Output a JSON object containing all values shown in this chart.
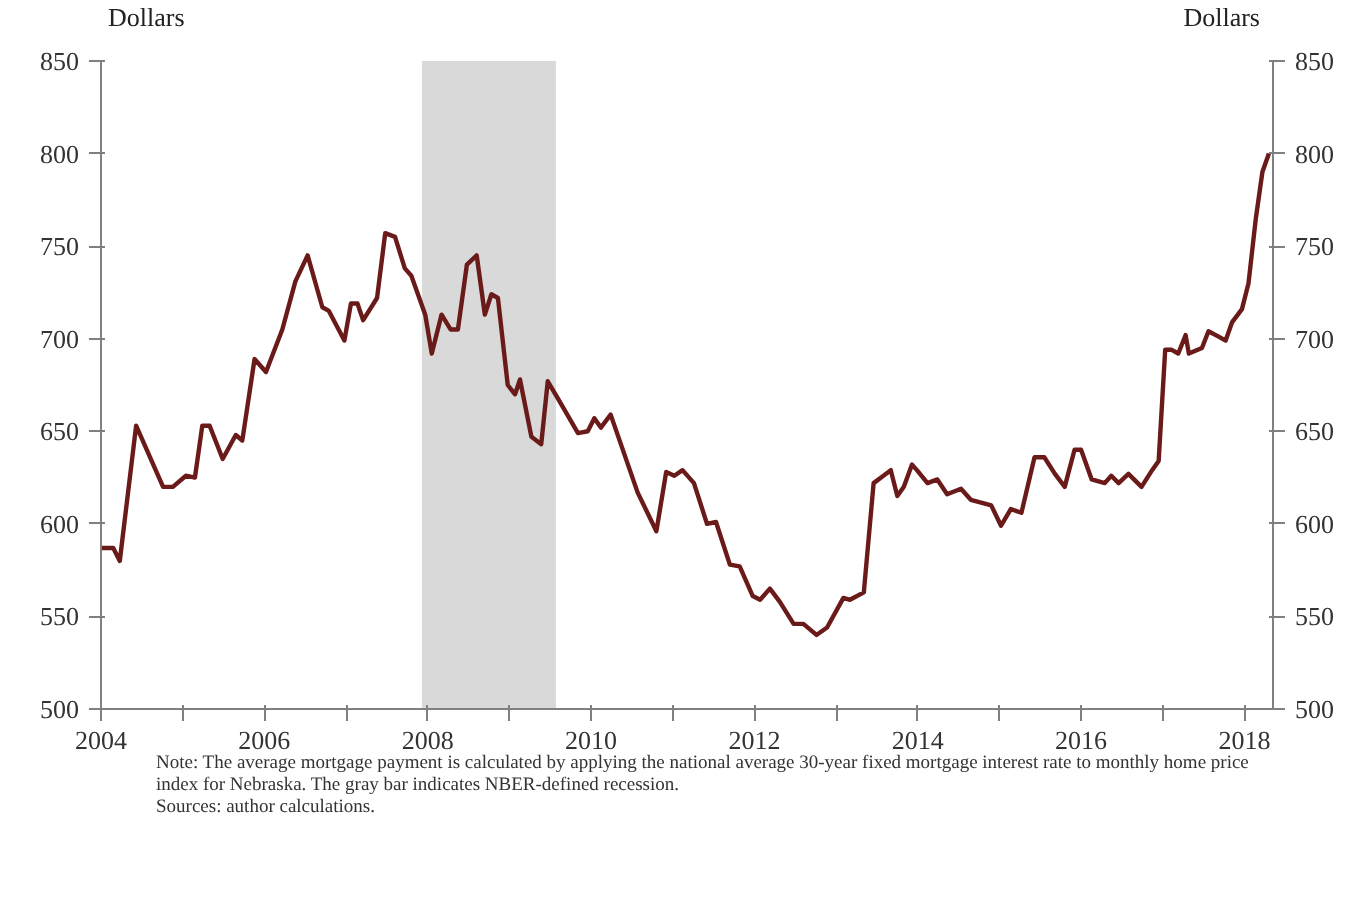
{
  "chart_data": {
    "type": "line",
    "ylabel": "Dollars",
    "y2label": "Dollars",
    "x": [
      2004.0,
      2004.15,
      2004.23,
      2004.43,
      2004.76,
      2004.88,
      2005.04,
      2005.15,
      2005.24,
      2005.33,
      2005.49,
      2005.65,
      2005.73,
      2005.88,
      2006.02,
      2006.22,
      2006.38,
      2006.53,
      2006.71,
      2006.79,
      2006.98,
      2007.06,
      2007.14,
      2007.21,
      2007.38,
      2007.48,
      2007.6,
      2007.72,
      2007.8,
      2007.97,
      2008.05,
      2008.17,
      2008.28,
      2008.37,
      2008.48,
      2008.6,
      2008.7,
      2008.78,
      2008.86,
      2008.98,
      2009.07,
      2009.13,
      2009.27,
      2009.39,
      2009.47,
      2009.59,
      2009.84,
      2009.96,
      2010.04,
      2010.12,
      2010.24,
      2010.57,
      2010.8,
      2010.92,
      2011.02,
      2011.12,
      2011.26,
      2011.42,
      2011.53,
      2011.7,
      2011.82,
      2011.98,
      2012.07,
      2012.19,
      2012.31,
      2012.48,
      2012.6,
      2012.76,
      2012.89,
      2013.09,
      2013.17,
      2013.34,
      2013.46,
      2013.58,
      2013.67,
      2013.75,
      2013.83,
      2013.93,
      2013.99,
      2014.12,
      2014.24,
      2014.36,
      2014.53,
      2014.65,
      2014.73,
      2014.9,
      2015.02,
      2015.14,
      2015.27,
      2015.43,
      2015.55,
      2015.68,
      2015.8,
      2015.92,
      2016.0,
      2016.13,
      2016.29,
      2016.37,
      2016.46,
      2016.58,
      2016.74,
      2016.87,
      2016.95,
      2017.03,
      2017.11,
      2017.19,
      2017.28,
      2017.32,
      2017.48,
      2017.56,
      2017.69,
      2017.77,
      2017.85,
      2017.97,
      2018.05,
      2018.14,
      2018.22,
      2018.3
    ],
    "series": [
      {
        "color": "#6b1a1a",
        "values": [
          587,
          587,
          580,
          653,
          620,
          620,
          626,
          625,
          653,
          653,
          635,
          648,
          645,
          689,
          682,
          705,
          731,
          745,
          717,
          715,
          699,
          719,
          719,
          710,
          722,
          757,
          755,
          738,
          734,
          713,
          692,
          713,
          705,
          705,
          740,
          745,
          713,
          724,
          722,
          675,
          670,
          678,
          647,
          643,
          677,
          668,
          649,
          650,
          657,
          652,
          659,
          617,
          596,
          628,
          626,
          629,
          622,
          600,
          601,
          578,
          577,
          561,
          559,
          565,
          558,
          546,
          546,
          540,
          544,
          560,
          559,
          563,
          622,
          626,
          629,
          615,
          620,
          632,
          629,
          622,
          624,
          616,
          619,
          613,
          612,
          610,
          599,
          608,
          606,
          636,
          636,
          627,
          620,
          640,
          640,
          624,
          622,
          626,
          622,
          627,
          620,
          629,
          634,
          694,
          694,
          692,
          702,
          692,
          695,
          704,
          701,
          699,
          709,
          716,
          730,
          765,
          790,
          800
        ]
      }
    ],
    "xlim": [
      2004,
      2018.35
    ],
    "xticks": [
      2004,
      {
        "value": 2005,
        "label": null
      },
      2006,
      {
        "value": 2007,
        "label": null
      },
      2008,
      {
        "value": 2009,
        "label": null
      },
      2010,
      {
        "value": 2011,
        "label": null
      },
      2012,
      {
        "value": 2013,
        "label": null
      },
      2014,
      {
        "value": 2015,
        "label": null
      },
      2016,
      {
        "value": 2017,
        "label": null
      },
      2018
    ],
    "ylim": [
      500,
      850
    ],
    "yticks": [
      500,
      550,
      600,
      650,
      700,
      750,
      800,
      850
    ],
    "y2lim": [
      500,
      850
    ],
    "y2ticks": [
      500,
      550,
      600,
      650,
      700,
      750,
      800,
      850
    ],
    "bands": [
      {
        "axis": "x",
        "from": 2007.93,
        "to": 2009.57,
        "color": "#d9d9d9"
      }
    ],
    "grid": false,
    "line_style": "solid",
    "annotations": [
      "Note: The average mortgage payment is calculated by applying the national average 30-year fixed mortgage interest rate to monthly home price index for Nebraska. The gray bar indicates NBER-defined recession.",
      "Sources: author calculations."
    ]
  }
}
